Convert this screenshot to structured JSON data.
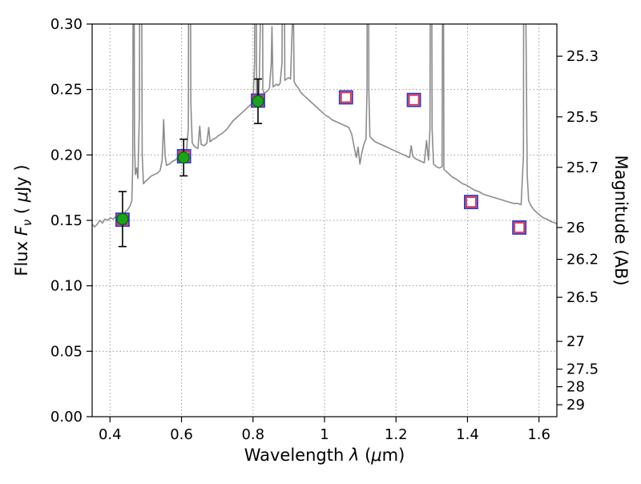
{
  "figure": {
    "background": "#ffffff"
  },
  "chart_data": {
    "type": "line",
    "title": "",
    "xlabel_parts": [
      {
        "t": "Wavelength  "
      },
      {
        "t": "λ",
        "i": 1
      },
      {
        "t": " ("
      },
      {
        "t": "μ",
        "i": 1
      },
      {
        "t": "m)"
      }
    ],
    "ylabel_left_parts": [
      {
        "t": "Flux  "
      },
      {
        "t": "F",
        "i": 1
      },
      {
        "t": "ν",
        "i": 1,
        "sub": 1
      },
      {
        "t": " ( "
      },
      {
        "t": "μ",
        "i": 1
      },
      {
        "t": "Jy )"
      }
    ],
    "ylabel_right_parts": [
      {
        "t": "Magnitude (AB)"
      }
    ],
    "xlim": [
      0.35,
      1.65
    ],
    "ylim_flux": [
      0.0,
      0.3
    ],
    "grid": true,
    "mag_zeropoint": 23.9,
    "x_ticks": [
      {
        "v": 0.4,
        "label": "0.4"
      },
      {
        "v": 0.6,
        "label": "0.6"
      },
      {
        "v": 0.8,
        "label": "0.8"
      },
      {
        "v": 1.0,
        "label": "1"
      },
      {
        "v": 1.2,
        "label": "1.2"
      },
      {
        "v": 1.4,
        "label": "1.4"
      },
      {
        "v": 1.6,
        "label": "1.6"
      }
    ],
    "y_ticks_flux": [
      {
        "v": 0.0,
        "label": "0.00"
      },
      {
        "v": 0.05,
        "label": "0.05"
      },
      {
        "v": 0.1,
        "label": "0.10"
      },
      {
        "v": 0.15,
        "label": "0.15"
      },
      {
        "v": 0.2,
        "label": "0.20"
      },
      {
        "v": 0.25,
        "label": "0.25"
      },
      {
        "v": 0.3,
        "label": "0.30"
      }
    ],
    "y_ticks_mag": [
      {
        "v": 25.3,
        "label": "25.3"
      },
      {
        "v": 25.5,
        "label": "25.5"
      },
      {
        "v": 25.7,
        "label": "25.7"
      },
      {
        "v": 26.0,
        "label": "26"
      },
      {
        "v": 26.2,
        "label": "26.2"
      },
      {
        "v": 26.5,
        "label": "26.5"
      },
      {
        "v": 27.0,
        "label": "27"
      },
      {
        "v": 27.5,
        "label": "27.5"
      },
      {
        "v": 28.0,
        "label": "28"
      },
      {
        "v": 29.0,
        "label": "29"
      }
    ],
    "style": {
      "spectrum_color": "#8c8c8c",
      "grid_color": "#999999",
      "circle_fill": "#1aa31a",
      "circle_edge": "#0b5e0b",
      "errorbar_color": "#000000",
      "square_outer_color": "#3232cc",
      "square_inner_color": "#e03140",
      "axis_color": "#000000"
    },
    "series": [
      {
        "name": "model-spectrum",
        "type": "line",
        "points": [
          [
            0.35,
            0.147
          ],
          [
            0.357,
            0.145
          ],
          [
            0.364,
            0.147
          ],
          [
            0.371,
            0.15
          ],
          [
            0.379,
            0.148
          ],
          [
            0.386,
            0.151
          ],
          [
            0.393,
            0.15
          ],
          [
            0.401,
            0.152
          ],
          [
            0.409,
            0.151
          ],
          [
            0.417,
            0.153
          ],
          [
            0.425,
            0.152
          ],
          [
            0.433,
            0.154
          ],
          [
            0.441,
            0.156
          ],
          [
            0.449,
            0.158
          ],
          [
            0.456,
            0.161
          ],
          [
            0.461,
            0.165
          ],
          [
            0.4635,
            0.19
          ],
          [
            0.466,
            0.5
          ],
          [
            0.4685,
            0.21
          ],
          [
            0.471,
            0.185
          ],
          [
            0.4745,
            0.19
          ],
          [
            0.478,
            0.182
          ],
          [
            0.482,
            0.23
          ],
          [
            0.486,
            0.58
          ],
          [
            0.49,
            0.2
          ],
          [
            0.4935,
            0.178
          ],
          [
            0.5,
            0.18
          ],
          [
            0.508,
            0.182
          ],
          [
            0.516,
            0.184
          ],
          [
            0.524,
            0.185
          ],
          [
            0.532,
            0.186
          ],
          [
            0.54,
            0.188
          ],
          [
            0.546,
            0.196
          ],
          [
            0.55,
            0.227
          ],
          [
            0.554,
            0.2
          ],
          [
            0.558,
            0.192
          ],
          [
            0.566,
            0.193
          ],
          [
            0.574,
            0.195
          ],
          [
            0.582,
            0.196
          ],
          [
            0.59,
            0.198
          ],
          [
            0.598,
            0.199
          ],
          [
            0.606,
            0.2
          ],
          [
            0.614,
            0.203
          ],
          [
            0.619,
            0.22
          ],
          [
            0.6225,
            0.62
          ],
          [
            0.626,
            0.24
          ],
          [
            0.63,
            0.209
          ],
          [
            0.638,
            0.206
          ],
          [
            0.646,
            0.205
          ],
          [
            0.651,
            0.222
          ],
          [
            0.655,
            0.208
          ],
          [
            0.663,
            0.207
          ],
          [
            0.671,
            0.209
          ],
          [
            0.676,
            0.221
          ],
          [
            0.68,
            0.21
          ],
          [
            0.688,
            0.212
          ],
          [
            0.696,
            0.213
          ],
          [
            0.704,
            0.215
          ],
          [
            0.712,
            0.216
          ],
          [
            0.72,
            0.218
          ],
          [
            0.728,
            0.22
          ],
          [
            0.736,
            0.223
          ],
          [
            0.744,
            0.226
          ],
          [
            0.752,
            0.228
          ],
          [
            0.76,
            0.23
          ],
          [
            0.768,
            0.232
          ],
          [
            0.776,
            0.234
          ],
          [
            0.784,
            0.236
          ],
          [
            0.792,
            0.238
          ],
          [
            0.8,
            0.24
          ],
          [
            0.8045,
            0.27
          ],
          [
            0.807,
            0.55
          ],
          [
            0.81,
            0.246
          ],
          [
            0.8135,
            0.244
          ],
          [
            0.817,
            0.247
          ],
          [
            0.8205,
            0.3
          ],
          [
            0.824,
            0.65
          ],
          [
            0.8275,
            0.25
          ],
          [
            0.831,
            0.247
          ],
          [
            0.836,
            0.248
          ],
          [
            0.841,
            0.249
          ],
          [
            0.846,
            0.251
          ],
          [
            0.851,
            0.27
          ],
          [
            0.853,
            0.298
          ],
          [
            0.856,
            0.252
          ],
          [
            0.861,
            0.253
          ],
          [
            0.866,
            0.254
          ],
          [
            0.871,
            0.253
          ],
          [
            0.876,
            0.255
          ],
          [
            0.881,
            0.27
          ],
          [
            0.885,
            0.5
          ],
          [
            0.889,
            0.257
          ],
          [
            0.894,
            0.258
          ],
          [
            0.899,
            0.259
          ],
          [
            0.905,
            0.258
          ],
          [
            0.91,
            0.3
          ],
          [
            0.9125,
            0.33
          ],
          [
            0.915,
            0.256
          ],
          [
            0.921,
            0.253
          ],
          [
            0.927,
            0.251
          ],
          [
            0.933,
            0.248
          ],
          [
            0.94,
            0.246
          ],
          [
            0.948,
            0.244
          ],
          [
            0.956,
            0.242
          ],
          [
            0.964,
            0.24
          ],
          [
            0.972,
            0.238
          ],
          [
            0.98,
            0.236
          ],
          [
            0.988,
            0.234
          ],
          [
            0.996,
            0.232
          ],
          [
            1.004,
            0.23
          ],
          [
            1.012,
            0.229
          ],
          [
            1.02,
            0.227
          ],
          [
            1.028,
            0.226
          ],
          [
            1.036,
            0.225
          ],
          [
            1.044,
            0.224
          ],
          [
            1.052,
            0.223
          ],
          [
            1.06,
            0.222
          ],
          [
            1.068,
            0.221
          ],
          [
            1.076,
            0.216
          ],
          [
            1.083,
            0.206
          ],
          [
            1.089,
            0.198
          ],
          [
            1.094,
            0.206
          ],
          [
            1.099,
            0.193
          ],
          [
            1.104,
            0.201
          ],
          [
            1.11,
            0.208
          ],
          [
            1.116,
            0.212
          ],
          [
            1.119,
            0.25
          ],
          [
            1.1215,
            0.7
          ],
          [
            1.124,
            0.25
          ],
          [
            1.127,
            0.214
          ],
          [
            1.134,
            0.212
          ],
          [
            1.142,
            0.21
          ],
          [
            1.15,
            0.209
          ],
          [
            1.158,
            0.208
          ],
          [
            1.166,
            0.207
          ],
          [
            1.174,
            0.206
          ],
          [
            1.182,
            0.205
          ],
          [
            1.19,
            0.204
          ],
          [
            1.198,
            0.203
          ],
          [
            1.206,
            0.202
          ],
          [
            1.214,
            0.201
          ],
          [
            1.222,
            0.2
          ],
          [
            1.23,
            0.199
          ],
          [
            1.238,
            0.198
          ],
          [
            1.2425,
            0.207
          ],
          [
            1.247,
            0.199
          ],
          [
            1.255,
            0.197
          ],
          [
            1.263,
            0.196
          ],
          [
            1.271,
            0.195
          ],
          [
            1.279,
            0.194
          ],
          [
            1.2855,
            0.211
          ],
          [
            1.291,
            0.196
          ],
          [
            1.295,
            0.22
          ],
          [
            1.298,
            0.56
          ],
          [
            1.301,
            0.22
          ],
          [
            1.305,
            0.193
          ],
          [
            1.313,
            0.191
          ],
          [
            1.321,
            0.19
          ],
          [
            1.329,
            0.191
          ],
          [
            1.3315,
            0.48
          ],
          [
            1.334,
            0.189
          ],
          [
            1.342,
            0.187
          ],
          [
            1.35,
            0.185
          ],
          [
            1.358,
            0.183
          ],
          [
            1.366,
            0.182
          ],
          [
            1.376,
            0.18
          ],
          [
            1.386,
            0.178
          ],
          [
            1.396,
            0.177
          ],
          [
            1.408,
            0.175
          ],
          [
            1.42,
            0.173
          ],
          [
            1.432,
            0.172
          ],
          [
            1.444,
            0.17
          ],
          [
            1.456,
            0.169
          ],
          [
            1.468,
            0.168
          ],
          [
            1.48,
            0.167
          ],
          [
            1.492,
            0.166
          ],
          [
            1.504,
            0.165
          ],
          [
            1.516,
            0.164
          ],
          [
            1.528,
            0.163
          ],
          [
            1.54,
            0.163
          ],
          [
            1.55,
            0.162
          ],
          [
            1.5565,
            0.2
          ],
          [
            1.56,
            0.85
          ],
          [
            1.5635,
            0.3
          ],
          [
            1.567,
            0.185
          ],
          [
            1.571,
            0.165
          ],
          [
            1.578,
            0.161
          ],
          [
            1.586,
            0.158
          ],
          [
            1.594,
            0.156
          ],
          [
            1.602,
            0.154
          ],
          [
            1.612,
            0.152
          ],
          [
            1.622,
            0.151
          ],
          [
            1.634,
            0.149
          ],
          [
            1.646,
            0.148
          ],
          [
            1.65,
            0.147
          ]
        ]
      },
      {
        "name": "observed-photometry",
        "type": "scatter-circle-errorbar",
        "points": [
          {
            "x": 0.435,
            "y": 0.151,
            "yerr": 0.021
          },
          {
            "x": 0.606,
            "y": 0.198,
            "yerr": 0.014
          },
          {
            "x": 0.814,
            "y": 0.241,
            "yerr": 0.017
          }
        ]
      },
      {
        "name": "model-photometry",
        "type": "scatter-square",
        "points": [
          [
            0.435,
            0.1505
          ],
          [
            0.607,
            0.199
          ],
          [
            0.814,
            0.2415
          ],
          [
            1.06,
            0.244
          ],
          [
            1.25,
            0.242
          ],
          [
            1.41,
            0.164
          ],
          [
            1.545,
            0.1445
          ]
        ]
      }
    ]
  }
}
